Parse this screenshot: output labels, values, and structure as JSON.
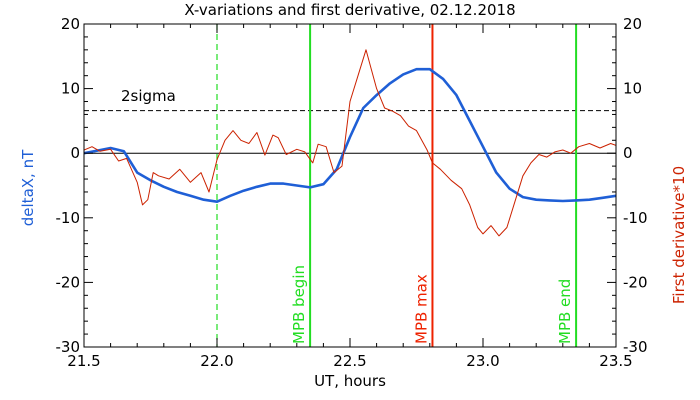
{
  "chart_data": {
    "type": "line",
    "title": "X-variations and first derivative, 02.12.2018",
    "xlabel": "UT, hours",
    "ylabel_left": "deltaX, nT",
    "ylabel_right": "First derivative*10",
    "xlim": [
      21.5,
      23.5
    ],
    "ylim": [
      -30,
      20
    ],
    "x_ticks": [
      21.5,
      22.0,
      22.5,
      23.0,
      23.5
    ],
    "x_tick_labels": [
      "21.5",
      "22.0",
      "22.5",
      "23.0",
      "23.5"
    ],
    "y_ticks": [
      -30,
      -20,
      -10,
      0,
      10,
      20
    ],
    "y_tick_labels": [
      "-30",
      "-20",
      "-10",
      "0",
      "10",
      "20"
    ],
    "zero_line": 0,
    "threshold": {
      "label": "2sigma",
      "value": 6.6
    },
    "colors": {
      "deltaX": "#1f5fd6",
      "derivative": "#cc2200",
      "mpb_edge": "#22dd22",
      "mpb_max": "#ee2200",
      "axis": "#000000"
    },
    "series": [
      {
        "name": "deltaX, nT",
        "x": [
          21.5,
          21.55,
          21.6,
          21.65,
          21.7,
          21.75,
          21.8,
          21.85,
          21.9,
          21.95,
          22.0,
          22.05,
          22.1,
          22.15,
          22.2,
          22.25,
          22.3,
          22.35,
          22.4,
          22.45,
          22.5,
          22.55,
          22.6,
          22.65,
          22.7,
          22.75,
          22.8,
          22.85,
          22.9,
          22.95,
          23.0,
          23.05,
          23.1,
          23.15,
          23.2,
          23.25,
          23.3,
          23.35,
          23.4,
          23.45,
          23.5
        ],
        "values": [
          0.0,
          0.4,
          0.8,
          0.3,
          -3.0,
          -4.2,
          -5.2,
          -6.0,
          -6.6,
          -7.2,
          -7.5,
          -6.6,
          -5.8,
          -5.2,
          -4.7,
          -4.7,
          -5.0,
          -5.3,
          -4.8,
          -2.5,
          2.5,
          7.0,
          9.0,
          10.8,
          12.2,
          13.0,
          13.0,
          11.5,
          9.0,
          5.0,
          1.0,
          -3.0,
          -5.5,
          -6.8,
          -7.2,
          -7.3,
          -7.4,
          -7.3,
          -7.2,
          -6.9,
          -6.6
        ]
      },
      {
        "name": "First derivative*10",
        "x": [
          21.5,
          21.53,
          21.56,
          21.6,
          21.63,
          21.66,
          21.7,
          21.72,
          21.74,
          21.76,
          21.78,
          21.82,
          21.86,
          21.9,
          21.94,
          21.97,
          22.0,
          22.03,
          22.06,
          22.09,
          22.12,
          22.15,
          22.18,
          22.21,
          22.23,
          22.26,
          22.3,
          22.33,
          22.36,
          22.38,
          22.41,
          22.44,
          22.47,
          22.5,
          22.53,
          22.56,
          22.58,
          22.6,
          22.63,
          22.66,
          22.69,
          22.72,
          22.75,
          22.79,
          22.81,
          22.84,
          22.88,
          22.92,
          22.95,
          22.98,
          23.0,
          23.03,
          23.06,
          23.09,
          23.12,
          23.15,
          23.18,
          23.21,
          23.24,
          23.27,
          23.3,
          23.33,
          23.36,
          23.4,
          23.44,
          23.48,
          23.5
        ],
        "values": [
          0.5,
          1.0,
          0.3,
          0.6,
          -1.2,
          -0.8,
          -4.5,
          -8.0,
          -7.2,
          -3.0,
          -3.5,
          -4.0,
          -2.5,
          -4.5,
          -3.0,
          -6.0,
          -1.0,
          2.0,
          3.5,
          2.0,
          1.5,
          3.2,
          -0.3,
          2.8,
          2.4,
          -0.2,
          0.6,
          0.2,
          -1.5,
          1.4,
          1.0,
          -3.0,
          -2.0,
          8.0,
          12.0,
          16.0,
          13.0,
          10.0,
          7.0,
          6.5,
          5.8,
          4.2,
          3.5,
          0.5,
          -1.5,
          -2.5,
          -4.2,
          -5.5,
          -8.0,
          -11.5,
          -12.5,
          -11.2,
          -12.8,
          -11.5,
          -7.5,
          -3.5,
          -1.5,
          -0.2,
          -0.6,
          0.2,
          0.5,
          0.0,
          1.0,
          1.5,
          0.8,
          1.5,
          1.2
        ]
      }
    ],
    "vlines": [
      {
        "x": 22.0,
        "style": "dashed",
        "color": "#22dd22",
        "label": ""
      },
      {
        "x": 22.35,
        "style": "solid",
        "color": "#22dd22",
        "label": "MPB begin"
      },
      {
        "x": 22.81,
        "style": "solid",
        "color": "#ee2200",
        "label": "MPB max"
      },
      {
        "x": 23.35,
        "style": "solid",
        "color": "#22dd22",
        "label": "MPB end"
      }
    ]
  }
}
